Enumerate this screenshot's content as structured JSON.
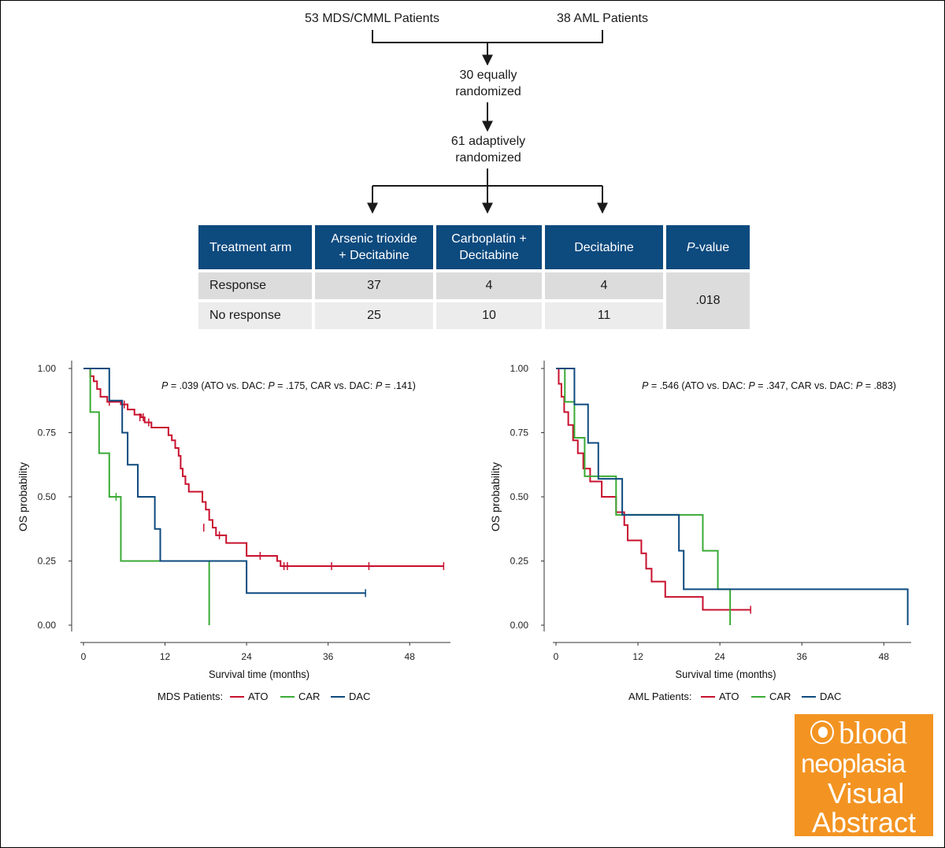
{
  "flow": {
    "mds_patients": "53 MDS/CMML Patients",
    "aml_patients": "38 AML Patients",
    "equal_line1": "30 equally",
    "equal_line2": "randomized",
    "adaptive_line1": "61 adaptively",
    "adaptive_line2": "randomized"
  },
  "table": {
    "headers": {
      "arm": "Treatment arm",
      "ato_line1": "Arsenic trioxide",
      "ato_line2": "+ Decitabine",
      "car_line1": "Carboplatin +",
      "car_line2": "Decitabine",
      "dac": "Decitabine",
      "p_italic": "P",
      "p_rest": "-value"
    },
    "rows": [
      {
        "label": "Response",
        "ato": "37",
        "car": "4",
        "dac": "4"
      },
      {
        "label": "No response",
        "ato": "25",
        "car": "10",
        "dac": "11"
      }
    ],
    "pvalue": ".018"
  },
  "colors": {
    "ATO": "#c8102e",
    "CAR": "#3aaa35",
    "DAC": "#0d4a7e",
    "header_bg": "#0d4a7e",
    "logo_bg": "#f39422"
  },
  "chart_data": [
    {
      "type": "line",
      "subtype": "kaplan-meier",
      "title": "",
      "annotation": {
        "p_italic": "P",
        "overall": " = .039 (ATO vs. DAC: ",
        "p2": " = .175, CAR vs. DAC: ",
        "p3": " = .141)"
      },
      "xlabel": "Survival time (months)",
      "ylabel": "OS probability",
      "xlim": [
        0,
        54
      ],
      "ylim": [
        0,
        1
      ],
      "xticks": [
        "0",
        "12",
        "24",
        "36",
        "48"
      ],
      "yticks": [
        "0.00",
        "0.25",
        "0.50",
        "0.75",
        "1.00"
      ],
      "legend_title": "MDS Patients:",
      "legend_position": "bottom",
      "series": [
        {
          "name": "ATO",
          "steps": [
            [
              0,
              1.0
            ],
            [
              1,
              0.97
            ],
            [
              1.5,
              0.95
            ],
            [
              2,
              0.92
            ],
            [
              2.5,
              0.89
            ],
            [
              3.5,
              0.87
            ],
            [
              5.5,
              0.86
            ],
            [
              6.5,
              0.84
            ],
            [
              7.5,
              0.82
            ],
            [
              8.5,
              0.81
            ],
            [
              9,
              0.79
            ],
            [
              10,
              0.77
            ],
            [
              12.5,
              0.74
            ],
            [
              13,
              0.72
            ],
            [
              13.5,
              0.69
            ],
            [
              14,
              0.66
            ],
            [
              14.3,
              0.61
            ],
            [
              14.6,
              0.58
            ],
            [
              15,
              0.55
            ],
            [
              15.5,
              0.52
            ],
            [
              17.5,
              0.48
            ],
            [
              18,
              0.45
            ],
            [
              18.5,
              0.41
            ],
            [
              19,
              0.38
            ],
            [
              19.5,
              0.35
            ],
            [
              21,
              0.32
            ],
            [
              24,
              0.27
            ],
            [
              28.5,
              0.25
            ],
            [
              29,
              0.23
            ],
            [
              53,
              0.23
            ]
          ],
          "censor": [
            [
              3.8,
              0.87
            ],
            [
              6.0,
              0.86
            ],
            [
              8.3,
              0.81
            ],
            [
              8.8,
              0.81
            ],
            [
              9.6,
              0.79
            ],
            [
              17.7,
              0.38
            ],
            [
              20.0,
              0.35
            ],
            [
              26.0,
              0.27
            ],
            [
              29.5,
              0.23
            ],
            [
              30,
              0.23
            ],
            [
              36.5,
              0.23
            ],
            [
              42,
              0.23
            ],
            [
              53,
              0.23
            ]
          ]
        },
        {
          "name": "CAR",
          "steps": [
            [
              0,
              1.0
            ],
            [
              1,
              0.83
            ],
            [
              2.3,
              0.67
            ],
            [
              3.8,
              0.5
            ],
            [
              5.5,
              0.25
            ],
            [
              18.5,
              0.25
            ],
            [
              18.5,
              0.0
            ]
          ],
          "censor": [
            [
              4.8,
              0.5
            ]
          ]
        },
        {
          "name": "DAC",
          "steps": [
            [
              0,
              1.0
            ],
            [
              3.8,
              0.875
            ],
            [
              5.7,
              0.75
            ],
            [
              6.5,
              0.625
            ],
            [
              8.0,
              0.5
            ],
            [
              10.5,
              0.375
            ],
            [
              11.3,
              0.25
            ],
            [
              24,
              0.25
            ],
            [
              24,
              0.125
            ],
            [
              41.5,
              0.125
            ]
          ],
          "censor": [
            [
              41.5,
              0.125
            ]
          ]
        }
      ]
    },
    {
      "type": "line",
      "subtype": "kaplan-meier",
      "title": "",
      "annotation": {
        "p_italic": "P",
        "overall": " = .546 (ATO vs. DAC: ",
        "p2": " = .347, CAR vs. DAC: ",
        "p3": " = .883)"
      },
      "xlabel": "Survival time (months)",
      "ylabel": "OS probability",
      "xlim": [
        0,
        52
      ],
      "ylim": [
        0,
        1
      ],
      "xticks": [
        "0",
        "12",
        "24",
        "36",
        "48"
      ],
      "yticks": [
        "0.00",
        "0.25",
        "0.50",
        "0.75",
        "1.00"
      ],
      "legend_title": "AML Patients:",
      "legend_position": "bottom",
      "series": [
        {
          "name": "ATO",
          "steps": [
            [
              0,
              1.0
            ],
            [
              0.4,
              0.94
            ],
            [
              0.8,
              0.89
            ],
            [
              1.2,
              0.83
            ],
            [
              1.8,
              0.78
            ],
            [
              2.5,
              0.72
            ],
            [
              3.2,
              0.67
            ],
            [
              4.0,
              0.61
            ],
            [
              5.0,
              0.56
            ],
            [
              6.7,
              0.5
            ],
            [
              8.8,
              0.44
            ],
            [
              10,
              0.39
            ],
            [
              10.5,
              0.33
            ],
            [
              12.5,
              0.28
            ],
            [
              13.2,
              0.22
            ],
            [
              14,
              0.17
            ],
            [
              16,
              0.11
            ],
            [
              21.5,
              0.06
            ],
            [
              28.5,
              0.06
            ]
          ],
          "censor": [
            [
              28.5,
              0.06
            ]
          ]
        },
        {
          "name": "CAR",
          "steps": [
            [
              0,
              1.0
            ],
            [
              1.3,
              0.87
            ],
            [
              2.7,
              0.73
            ],
            [
              4.2,
              0.58
            ],
            [
              6.0,
              0.58
            ],
            [
              8.8,
              0.43
            ],
            [
              21.5,
              0.43
            ],
            [
              21.5,
              0.29
            ],
            [
              23.7,
              0.14
            ],
            [
              25.5,
              0.14
            ],
            [
              25.5,
              0.0
            ]
          ],
          "censor": []
        },
        {
          "name": "DAC",
          "steps": [
            [
              0,
              1.0
            ],
            [
              2.7,
              0.86
            ],
            [
              4.7,
              0.71
            ],
            [
              6.2,
              0.57
            ],
            [
              9.7,
              0.43
            ],
            [
              18,
              0.43
            ],
            [
              18,
              0.29
            ],
            [
              18.7,
              0.14
            ],
            [
              51.5,
              0.14
            ],
            [
              51.5,
              0.0
            ]
          ],
          "censor": []
        }
      ]
    }
  ]
}
